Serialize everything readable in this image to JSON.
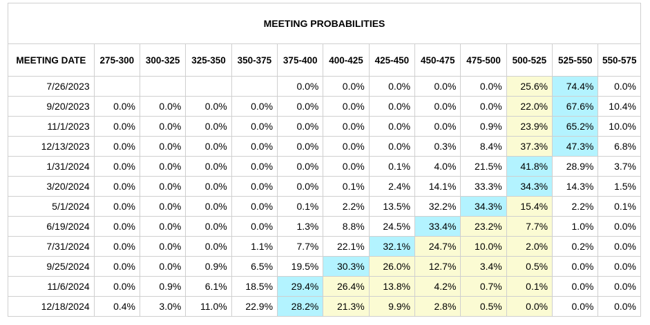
{
  "title": "MEETING PROBABILITIES",
  "headers": [
    "MEETING DATE",
    "275-300",
    "300-325",
    "325-350",
    "350-375",
    "375-400",
    "400-425",
    "425-450",
    "450-475",
    "475-500",
    "500-525",
    "525-550",
    "550-575"
  ],
  "colors": {
    "highlight_max": "#b3f3ff",
    "highlight_secondary": "#fbfbd3",
    "border": "#cfcfcf"
  },
  "rows": [
    {
      "date": "7/26/2023",
      "cells": [
        {
          "v": ""
        },
        {
          "v": ""
        },
        {
          "v": ""
        },
        {
          "v": ""
        },
        {
          "v": "0.0%"
        },
        {
          "v": "0.0%"
        },
        {
          "v": "0.0%"
        },
        {
          "v": "0.0%"
        },
        {
          "v": "0.0%"
        },
        {
          "v": "25.6%",
          "h": "yellow"
        },
        {
          "v": "74.4%",
          "h": "blue"
        },
        {
          "v": "0.0%"
        }
      ]
    },
    {
      "date": "9/20/2023",
      "cells": [
        {
          "v": "0.0%"
        },
        {
          "v": "0.0%"
        },
        {
          "v": "0.0%"
        },
        {
          "v": "0.0%"
        },
        {
          "v": "0.0%"
        },
        {
          "v": "0.0%"
        },
        {
          "v": "0.0%"
        },
        {
          "v": "0.0%"
        },
        {
          "v": "0.0%"
        },
        {
          "v": "22.0%",
          "h": "yellow"
        },
        {
          "v": "67.6%",
          "h": "blue"
        },
        {
          "v": "10.4%"
        }
      ]
    },
    {
      "date": "11/1/2023",
      "cells": [
        {
          "v": "0.0%"
        },
        {
          "v": "0.0%"
        },
        {
          "v": "0.0%"
        },
        {
          "v": "0.0%"
        },
        {
          "v": "0.0%"
        },
        {
          "v": "0.0%"
        },
        {
          "v": "0.0%"
        },
        {
          "v": "0.0%"
        },
        {
          "v": "0.9%"
        },
        {
          "v": "23.9%",
          "h": "yellow"
        },
        {
          "v": "65.2%",
          "h": "blue"
        },
        {
          "v": "10.0%"
        }
      ]
    },
    {
      "date": "12/13/2023",
      "cells": [
        {
          "v": "0.0%"
        },
        {
          "v": "0.0%"
        },
        {
          "v": "0.0%"
        },
        {
          "v": "0.0%"
        },
        {
          "v": "0.0%"
        },
        {
          "v": "0.0%"
        },
        {
          "v": "0.0%"
        },
        {
          "v": "0.3%"
        },
        {
          "v": "8.4%"
        },
        {
          "v": "37.3%",
          "h": "yellow"
        },
        {
          "v": "47.3%",
          "h": "blue"
        },
        {
          "v": "6.8%"
        }
      ]
    },
    {
      "date": "1/31/2024",
      "cells": [
        {
          "v": "0.0%"
        },
        {
          "v": "0.0%"
        },
        {
          "v": "0.0%"
        },
        {
          "v": "0.0%"
        },
        {
          "v": "0.0%"
        },
        {
          "v": "0.0%"
        },
        {
          "v": "0.1%"
        },
        {
          "v": "4.0%"
        },
        {
          "v": "21.5%"
        },
        {
          "v": "41.8%",
          "h": "blue"
        },
        {
          "v": "28.9%"
        },
        {
          "v": "3.7%"
        }
      ]
    },
    {
      "date": "3/20/2024",
      "cells": [
        {
          "v": "0.0%"
        },
        {
          "v": "0.0%"
        },
        {
          "v": "0.0%"
        },
        {
          "v": "0.0%"
        },
        {
          "v": "0.0%"
        },
        {
          "v": "0.1%"
        },
        {
          "v": "2.4%"
        },
        {
          "v": "14.1%"
        },
        {
          "v": "33.3%"
        },
        {
          "v": "34.3%",
          "h": "blue"
        },
        {
          "v": "14.3%"
        },
        {
          "v": "1.5%"
        }
      ]
    },
    {
      "date": "5/1/2024",
      "cells": [
        {
          "v": "0.0%"
        },
        {
          "v": "0.0%"
        },
        {
          "v": "0.0%"
        },
        {
          "v": "0.0%"
        },
        {
          "v": "0.1%"
        },
        {
          "v": "2.2%"
        },
        {
          "v": "13.5%"
        },
        {
          "v": "32.2%"
        },
        {
          "v": "34.3%",
          "h": "blue"
        },
        {
          "v": "15.4%",
          "h": "yellow"
        },
        {
          "v": "2.2%"
        },
        {
          "v": "0.1%"
        }
      ]
    },
    {
      "date": "6/19/2024",
      "cells": [
        {
          "v": "0.0%"
        },
        {
          "v": "0.0%"
        },
        {
          "v": "0.0%"
        },
        {
          "v": "0.0%"
        },
        {
          "v": "1.3%"
        },
        {
          "v": "8.8%"
        },
        {
          "v": "24.5%"
        },
        {
          "v": "33.4%",
          "h": "blue"
        },
        {
          "v": "23.2%",
          "h": "yellow"
        },
        {
          "v": "7.7%",
          "h": "yellow"
        },
        {
          "v": "1.0%"
        },
        {
          "v": "0.0%"
        }
      ]
    },
    {
      "date": "7/31/2024",
      "cells": [
        {
          "v": "0.0%"
        },
        {
          "v": "0.0%"
        },
        {
          "v": "0.0%"
        },
        {
          "v": "1.1%"
        },
        {
          "v": "7.7%"
        },
        {
          "v": "22.1%"
        },
        {
          "v": "32.1%",
          "h": "blue"
        },
        {
          "v": "24.7%",
          "h": "yellow"
        },
        {
          "v": "10.0%",
          "h": "yellow"
        },
        {
          "v": "2.0%",
          "h": "yellow"
        },
        {
          "v": "0.2%"
        },
        {
          "v": "0.0%"
        }
      ]
    },
    {
      "date": "9/25/2024",
      "cells": [
        {
          "v": "0.0%"
        },
        {
          "v": "0.0%"
        },
        {
          "v": "0.9%"
        },
        {
          "v": "6.5%"
        },
        {
          "v": "19.5%"
        },
        {
          "v": "30.3%",
          "h": "blue"
        },
        {
          "v": "26.0%",
          "h": "yellow"
        },
        {
          "v": "12.7%",
          "h": "yellow"
        },
        {
          "v": "3.4%",
          "h": "yellow"
        },
        {
          "v": "0.5%",
          "h": "yellow"
        },
        {
          "v": "0.0%"
        },
        {
          "v": "0.0%"
        }
      ]
    },
    {
      "date": "11/6/2024",
      "cells": [
        {
          "v": "0.0%"
        },
        {
          "v": "0.9%"
        },
        {
          "v": "6.1%"
        },
        {
          "v": "18.5%"
        },
        {
          "v": "29.4%",
          "h": "blue"
        },
        {
          "v": "26.4%",
          "h": "yellow"
        },
        {
          "v": "13.8%",
          "h": "yellow"
        },
        {
          "v": "4.2%",
          "h": "yellow"
        },
        {
          "v": "0.7%",
          "h": "yellow"
        },
        {
          "v": "0.1%",
          "h": "yellow"
        },
        {
          "v": "0.0%"
        },
        {
          "v": "0.0%"
        }
      ]
    },
    {
      "date": "12/18/2024",
      "cells": [
        {
          "v": "0.4%"
        },
        {
          "v": "3.0%"
        },
        {
          "v": "11.0%"
        },
        {
          "v": "22.9%"
        },
        {
          "v": "28.2%",
          "h": "blue"
        },
        {
          "v": "21.3%",
          "h": "yellow"
        },
        {
          "v": "9.9%",
          "h": "yellow"
        },
        {
          "v": "2.8%",
          "h": "yellow"
        },
        {
          "v": "0.5%",
          "h": "yellow"
        },
        {
          "v": "0.0%",
          "h": "yellow"
        },
        {
          "v": "0.0%"
        },
        {
          "v": "0.0%"
        }
      ]
    }
  ]
}
